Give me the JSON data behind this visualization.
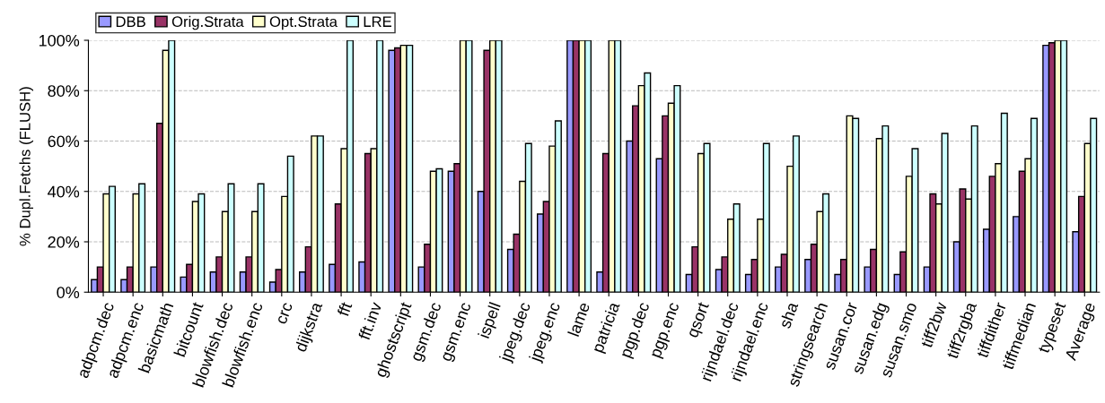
{
  "chart_data": {
    "type": "bar",
    "ylabel": "% Dupl.Fetchs (FLUSH)",
    "categories": [
      "adpcm.dec",
      "adpcm.enc",
      "basicmath",
      "bitcount",
      "blowfish.dec",
      "blowfish.enc",
      "crc",
      "dijkstra",
      "fft",
      "fft.inv",
      "ghostscript",
      "gsm.dec",
      "gsm.enc",
      "ispell",
      "jpeg.dec",
      "jpeg.enc",
      "lame",
      "patricia",
      "pgp.dec",
      "pgp.enc",
      "qsort",
      "rijndael.dec",
      "rijndael.enc",
      "sha",
      "stringsearch",
      "susan.cor",
      "susan.edg",
      "susan.smo",
      "tiff2bw",
      "tiff2rgba",
      "tiffdither",
      "tiffmedian",
      "typeset",
      "Average"
    ],
    "series": [
      {
        "name": "DBB",
        "color": "#9999ff",
        "values": [
          5,
          5,
          10,
          6,
          8,
          8,
          4,
          8,
          11,
          12,
          96,
          10,
          48,
          40,
          17,
          31,
          100,
          8,
          60,
          53,
          7,
          9,
          7,
          10,
          13,
          7,
          10,
          7,
          10,
          20,
          25,
          30,
          98,
          24
        ]
      },
      {
        "name": "Orig.Strata",
        "color": "#993366",
        "values": [
          10,
          10,
          67,
          11,
          14,
          14,
          9,
          18,
          35,
          55,
          97,
          19,
          51,
          96,
          23,
          36,
          100,
          55,
          74,
          70,
          18,
          14,
          13,
          15,
          19,
          13,
          17,
          16,
          39,
          41,
          46,
          48,
          99,
          38
        ]
      },
      {
        "name": "Opt.Strata",
        "color": "#ffffcc",
        "values": [
          39,
          39,
          96,
          36,
          32,
          32,
          38,
          62,
          57,
          57,
          98,
          48,
          100,
          100,
          44,
          58,
          100,
          100,
          82,
          75,
          55,
          29,
          29,
          50,
          32,
          70,
          61,
          46,
          35,
          37,
          51,
          53,
          100,
          59
        ]
      },
      {
        "name": "LRE",
        "color": "#ccffff",
        "values": [
          42,
          43,
          100,
          39,
          43,
          43,
          54,
          62,
          100,
          100,
          98,
          49,
          100,
          100,
          59,
          68,
          100,
          100,
          87,
          82,
          59,
          35,
          59,
          62,
          39,
          69,
          66,
          57,
          63,
          66,
          71,
          69,
          100,
          69
        ]
      }
    ],
    "ylim": [
      0,
      100
    ],
    "yticks": [
      {
        "value": 0,
        "label": "0%"
      },
      {
        "value": 20,
        "label": "20%"
      },
      {
        "value": 40,
        "label": "40%"
      },
      {
        "value": 60,
        "label": "60%"
      },
      {
        "value": 80,
        "label": "80%"
      },
      {
        "value": 100,
        "label": "100%"
      }
    ],
    "grid": "y",
    "legend": "top left"
  }
}
